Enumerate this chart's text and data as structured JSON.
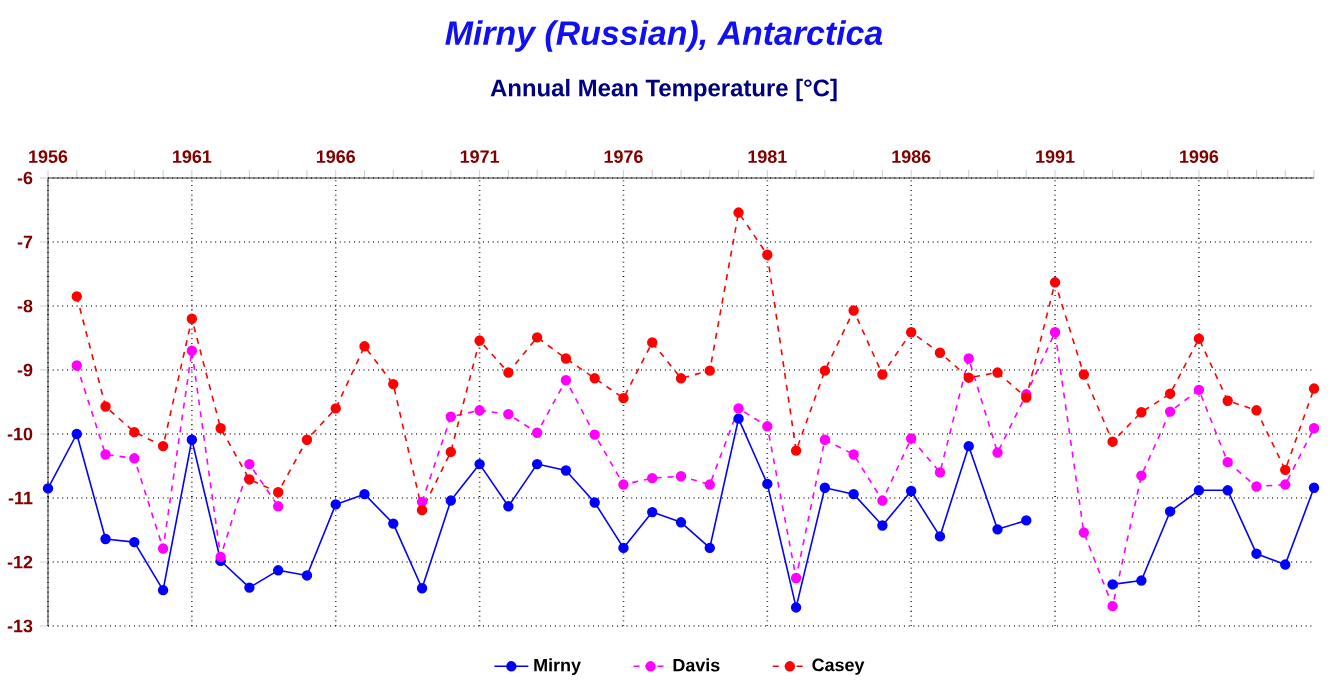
{
  "chart_data": {
    "type": "line",
    "title": "Mirny (Russian), Antarctica",
    "subtitle": "Annual Mean Temperature [°C]",
    "x": [
      1956,
      1957,
      1958,
      1959,
      1960,
      1961,
      1962,
      1963,
      1964,
      1965,
      1966,
      1967,
      1968,
      1969,
      1970,
      1971,
      1972,
      1973,
      1974,
      1975,
      1976,
      1977,
      1978,
      1979,
      1980,
      1981,
      1982,
      1983,
      1984,
      1985,
      1986,
      1987,
      1988,
      1989,
      1990,
      1991,
      1992,
      1993,
      1994,
      1995,
      1996,
      1997,
      1998,
      1999,
      2000
    ],
    "series": [
      {
        "name": "Mirny",
        "color": "#0000ff",
        "line_style": "solid",
        "values": [
          -10.85,
          -10.0,
          -11.64,
          -11.69,
          -12.44,
          -10.09,
          -11.98,
          -12.4,
          -12.13,
          -12.21,
          -11.1,
          -10.94,
          -11.4,
          -12.41,
          -11.04,
          -10.47,
          -11.13,
          -10.47,
          -10.57,
          -11.07,
          -11.78,
          -11.22,
          -11.38,
          -11.78,
          -9.76,
          -10.78,
          -12.71,
          -10.84,
          -10.94,
          -11.43,
          -10.89,
          -11.6,
          -10.19,
          -11.49,
          -11.35,
          null,
          null,
          -12.35,
          -12.29,
          -11.21,
          -10.88,
          -10.88,
          -11.87,
          -12.04,
          -10.84
        ]
      },
      {
        "name": "Davis",
        "color": "#ff00ff",
        "line_style": "dashed",
        "values": [
          null,
          -8.93,
          -10.32,
          -10.38,
          -11.79,
          -8.7,
          -11.92,
          -10.47,
          -11.13,
          null,
          null,
          null,
          null,
          -11.06,
          -9.73,
          -9.63,
          -9.69,
          -9.98,
          -9.16,
          -10.01,
          -10.79,
          -10.69,
          -10.66,
          -10.79,
          -9.6,
          -9.88,
          -12.25,
          -10.09,
          -10.32,
          -11.04,
          -10.07,
          -10.6,
          -8.82,
          -10.29,
          -9.38,
          -8.41,
          -11.54,
          -12.69,
          -10.65,
          -9.65,
          -9.31,
          -10.44,
          -10.82,
          -10.79,
          -9.91
        ]
      },
      {
        "name": "Casey",
        "color": "#ff0000",
        "line_style": "dashed",
        "values": [
          null,
          -7.85,
          -9.57,
          -9.97,
          -10.19,
          -8.2,
          -9.91,
          -10.71,
          -10.91,
          -10.09,
          -9.6,
          -8.63,
          -9.22,
          -11.19,
          -10.28,
          -8.54,
          -9.04,
          -8.49,
          -8.82,
          -9.13,
          -9.44,
          -8.57,
          -9.13,
          -9.01,
          -6.54,
          -7.2,
          -10.26,
          -9.01,
          -8.07,
          -9.07,
          -8.41,
          -8.73,
          -9.12,
          -9.04,
          -9.43,
          -7.63,
          -9.07,
          -10.12,
          -9.66,
          -9.37,
          -8.51,
          -9.48,
          -9.63,
          -10.56,
          -9.29
        ]
      }
    ],
    "xlim": [
      1956,
      2000
    ],
    "xticks": [
      1956,
      {
        "value": 1957,
        "label": null
      },
      {
        "value": 1958,
        "label": null
      },
      {
        "value": 1959,
        "label": null
      },
      {
        "value": 1960,
        "label": null
      },
      1961,
      {
        "value": 1962,
        "label": null
      },
      {
        "value": 1963,
        "label": null
      },
      {
        "value": 1964,
        "label": null
      },
      {
        "value": 1965,
        "label": null
      },
      1966,
      {
        "value": 1967,
        "label": null
      },
      {
        "value": 1968,
        "label": null
      },
      {
        "value": 1969,
        "label": null
      },
      {
        "value": 1970,
        "label": null
      },
      1971,
      {
        "value": 1972,
        "label": null
      },
      {
        "value": 1973,
        "label": null
      },
      {
        "value": 1974,
        "label": null
      },
      {
        "value": 1975,
        "label": null
      },
      1976,
      {
        "value": 1977,
        "label": null
      },
      {
        "value": 1978,
        "label": null
      },
      {
        "value": 1979,
        "label": null
      },
      {
        "value": 1980,
        "label": null
      },
      1981,
      {
        "value": 1982,
        "label": null
      },
      {
        "value": 1983,
        "label": null
      },
      {
        "value": 1984,
        "label": null
      },
      {
        "value": 1985,
        "label": null
      },
      1986,
      {
        "value": 1987,
        "label": null
      },
      {
        "value": 1988,
        "label": null
      },
      {
        "value": 1989,
        "label": null
      },
      {
        "value": 1990,
        "label": null
      },
      1991,
      {
        "value": 1992,
        "label": null
      },
      {
        "value": 1993,
        "label": null
      },
      {
        "value": 1994,
        "label": null
      },
      {
        "value": 1995,
        "label": null
      },
      1996,
      {
        "value": 1997,
        "label": null
      },
      {
        "value": 1998,
        "label": null
      },
      {
        "value": 1999,
        "label": null
      },
      {
        "value": 2000,
        "label": null
      }
    ],
    "ylim": [
      -13,
      -6
    ],
    "yticks": [
      -13,
      -12,
      -11,
      -10,
      -9,
      -8,
      -7,
      -6
    ],
    "grid": true,
    "legend": "bottom",
    "marker": "circle"
  }
}
